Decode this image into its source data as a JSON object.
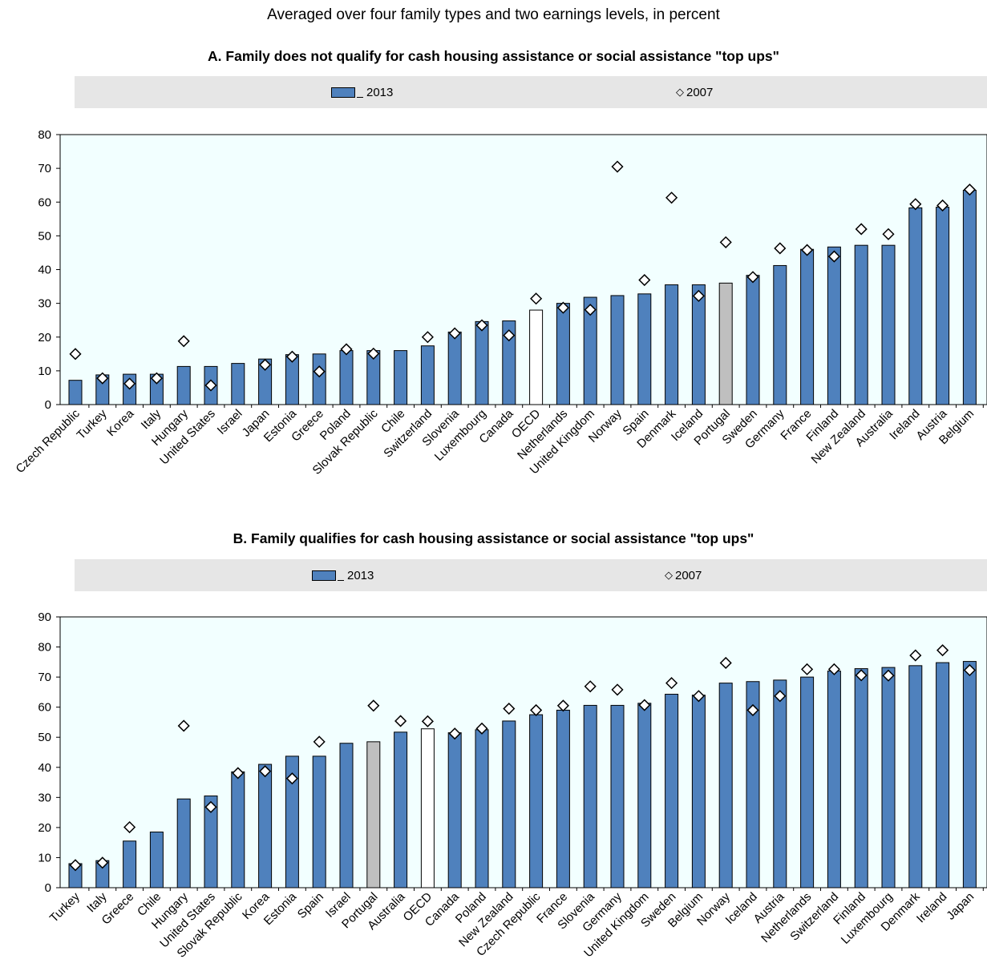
{
  "subtitle": "Averaged over four family types and two earnings levels, in percent",
  "colors": {
    "bar": "#4f81bd",
    "oecd": "#ffffff",
    "portugal": "#bfbfbf",
    "plot_bg": "#f2ffff",
    "legend_bg": "#e6e6e6"
  },
  "chart_data": [
    {
      "type": "bar",
      "title": "A. Family does not qualify for cash housing assistance or social assistance \"top ups\"",
      "legend": {
        "bar_label": "2013",
        "marker_label": "2007"
      },
      "ylim": [
        0,
        80
      ],
      "yticks": [
        0,
        10,
        20,
        30,
        40,
        50,
        60,
        70,
        80
      ],
      "categories": [
        "Czech Republic",
        "Turkey",
        "Korea",
        "Italy",
        "Hungary",
        "United States",
        "Israel",
        "Japan",
        "Estonia",
        "Greece",
        "Poland",
        "Slovak Republic",
        "Chile",
        "Switzerland",
        "Slovenia",
        "Luxembourg",
        "Canada",
        "OECD",
        "Netherlands",
        "United Kingdom",
        "Norway",
        "Spain",
        "Denmark",
        "Iceland",
        "Portugal",
        "Sweden",
        "Germany",
        "France",
        "Finland",
        "New Zealand",
        "Australia",
        "Ireland",
        "Austria",
        "Belgium"
      ],
      "series": [
        {
          "name": "2013",
          "type": "bar",
          "values": [
            7.2,
            8.8,
            9,
            9,
            11.3,
            11.3,
            12.2,
            13.5,
            14.8,
            15,
            16,
            16,
            16,
            17.4,
            21.5,
            24.6,
            24.8,
            28,
            30,
            31.8,
            32.3,
            32.8,
            35.5,
            35.5,
            36,
            38.3,
            41.2,
            46,
            46.7,
            47.2,
            47.2,
            58.3,
            58.5,
            63.5
          ]
        },
        {
          "name": "2007",
          "type": "marker",
          "values": [
            15,
            7.8,
            6.2,
            7.8,
            18.8,
            5.7,
            null,
            11.8,
            14.2,
            9.8,
            16.4,
            15.1,
            null,
            20,
            21.1,
            23.5,
            20.5,
            31.4,
            28.7,
            28.1,
            70.5,
            36.9,
            61.3,
            32.2,
            48.1,
            37.8,
            46.3,
            45.8,
            43.9,
            52,
            50.5,
            59.4,
            59,
            63.7
          ]
        }
      ]
    },
    {
      "type": "bar",
      "title": "B. Family qualifies for cash housing assistance or social assistance \"top ups\"",
      "legend": {
        "bar_label": "2013",
        "marker_label": "2007"
      },
      "ylim": [
        0,
        90
      ],
      "yticks": [
        0,
        10,
        20,
        30,
        40,
        50,
        60,
        70,
        80,
        90
      ],
      "categories": [
        "Turkey",
        "Italy",
        "Greece",
        "Chile",
        "Hungary",
        "United States",
        "Slovak Republic",
        "Korea",
        "Estonia",
        "Spain",
        "Israel",
        "Portugal",
        "Australia",
        "OECD",
        "Canada",
        "Poland",
        "New Zealand",
        "Czech Republic",
        "France",
        "Slovenia",
        "Germany",
        "United Kingdom",
        "Sweden",
        "Belgium",
        "Norway",
        "Iceland",
        "Austria",
        "Netherlands",
        "Switzerland",
        "Finland",
        "Luxembourg",
        "Denmark",
        "Ireland",
        "Japan"
      ],
      "series": [
        {
          "name": "2013",
          "type": "bar",
          "values": [
            8,
            9,
            15.5,
            18.5,
            29.5,
            30.5,
            38.5,
            41,
            43.7,
            43.7,
            48,
            48.5,
            51.7,
            52.8,
            51.5,
            52.5,
            55.4,
            57.5,
            59,
            60.6,
            60.6,
            61.3,
            64.3,
            64,
            68,
            68.5,
            69,
            70,
            72,
            72.8,
            73.2,
            73.8,
            74.8,
            75.2
          ]
        },
        {
          "name": "2007",
          "type": "marker",
          "values": [
            7.5,
            8.3,
            20.1,
            null,
            53.8,
            26.8,
            38.1,
            38.7,
            36.3,
            48.5,
            null,
            60.5,
            55.4,
            55.3,
            51.2,
            52.9,
            59.5,
            59,
            60.5,
            66.9,
            65.8,
            60.7,
            68,
            63.7,
            74.7,
            59,
            63.7,
            72.6,
            72.6,
            70.6,
            70.5,
            77.2,
            78.9,
            72.3
          ]
        }
      ]
    }
  ]
}
